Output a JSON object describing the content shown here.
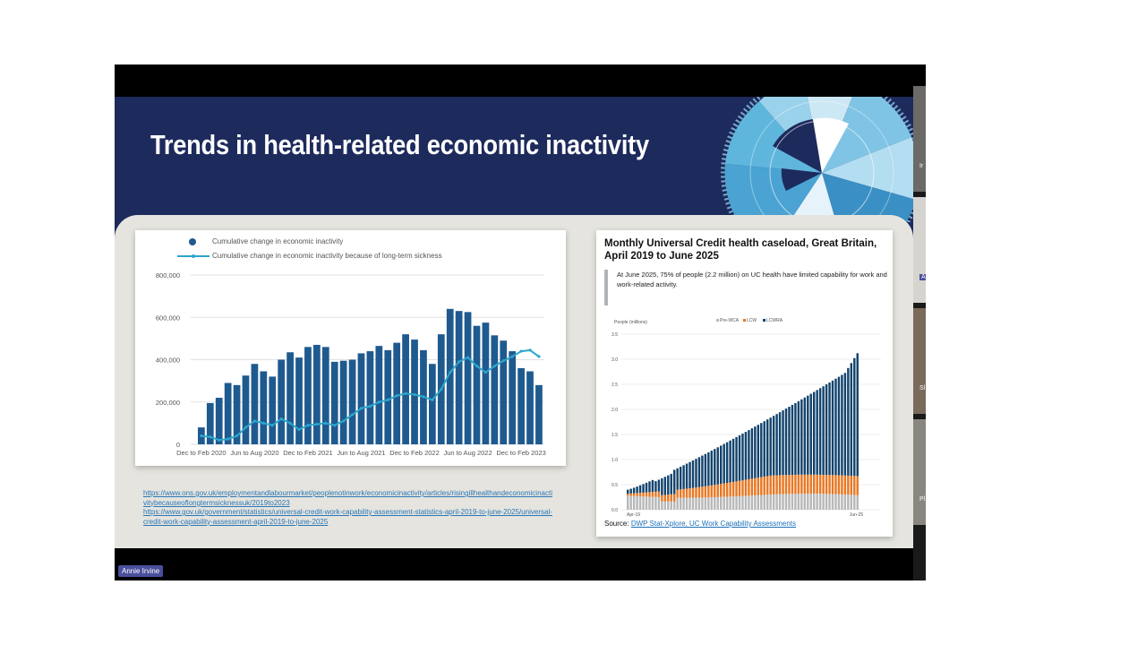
{
  "slide": {
    "title": "Trends in health-related economic inactivity"
  },
  "left_chart": {
    "legend": [
      "Cumulative change in economic inactivity",
      "Cumulative change in economic inactivity because of long-term sickness"
    ],
    "links": [
      "https://www.ons.gov.uk/employmentandlabourmarket/peoplenotinwork/economicinactivity/articles/risingillhealthandeconomicinactivitybecauseoflongtermsicknessuk/2019to2023",
      "https://www.gov.uk/government/statistics/universal-credit-work-capability-assessment-statistics-april-2019-to-june-2025/universal-credit-work-capability-assessment-april-2019-to-june-2025"
    ]
  },
  "right_chart": {
    "title": "Monthly Universal Credit health caseload, Great Britain, April 2019 to June 2025",
    "callout": "At June 2025, 75% of people (2.2 million) on UC health have limited capability for work and work-related activity.",
    "source_label": "Source:",
    "source_link": "DWP Stat-Xplore, UC Work Capability Assessments"
  },
  "participants": {
    "presenter_name": "Annie Irvine",
    "tile_labels": [
      "Ir",
      "A",
      "Sl",
      "Pl"
    ]
  },
  "colors": {
    "slide_bg": "#1d2a5c",
    "bar_blue": "#1f5a8f",
    "line_cyan": "#2ba6cc",
    "lcw_orange": "#e87722",
    "prewca_grey": "#b8b8b8",
    "lcwra_navy": "#12436d"
  },
  "chart_data": [
    {
      "type": "bar",
      "title": "",
      "xlabel": "",
      "ylabel": "",
      "ylim": [
        0,
        800000
      ],
      "yticks": [
        "0",
        "200,000",
        "400,000",
        "600,000",
        "800,000"
      ],
      "xtick_labels": [
        "Dec to Feb 2020",
        "Jun to Aug 2020",
        "Dec to Feb 2021",
        "Jun to Aug 2021",
        "Dec to Feb 2022",
        "Jun to Aug 2022",
        "Dec to Feb 2023"
      ],
      "series": [
        {
          "name": "Cumulative change in economic inactivity",
          "kind": "bar",
          "values": [
            80000,
            195000,
            220000,
            290000,
            280000,
            325000,
            380000,
            345000,
            320000,
            400000,
            435000,
            410000,
            460000,
            470000,
            460000,
            390000,
            395000,
            400000,
            430000,
            440000,
            465000,
            445000,
            480000,
            520000,
            495000,
            445000,
            380000,
            520000,
            640000,
            630000,
            625000,
            560000,
            575000,
            515000,
            490000,
            440000,
            360000,
            345000,
            280000
          ]
        },
        {
          "name": "Cumulative change in economic inactivity because of long-term sickness",
          "kind": "line",
          "values": [
            40000,
            35000,
            20000,
            25000,
            40000,
            80000,
            110000,
            100000,
            90000,
            120000,
            100000,
            70000,
            90000,
            95000,
            100000,
            90000,
            110000,
            140000,
            170000,
            180000,
            200000,
            210000,
            230000,
            240000,
            235000,
            225000,
            210000,
            260000,
            340000,
            390000,
            410000,
            370000,
            340000,
            370000,
            395000,
            415000,
            440000,
            445000,
            415000
          ]
        }
      ]
    },
    {
      "type": "bar",
      "title": "Monthly Universal Credit health caseload, Great Britain, April 2019 to June 2025",
      "ylabel": "People (millions)",
      "ylim": [
        0,
        3.5
      ],
      "yticks": [
        "0.0",
        "0.5",
        "1.0",
        "1.5",
        "2.0",
        "2.5",
        "3.0",
        "3.5"
      ],
      "xtick_labels": [
        "Apr-19",
        "Jun-25"
      ],
      "stacked": true,
      "legend_position": "top",
      "series_names": [
        "Pre-WCA",
        "LCW",
        "LCWRA"
      ],
      "note": "75 monthly stacked bars; Pre-WCA ~0.25-0.3m, LCW grows from ~0.05m to ~0.4m, total rises from ~0.4m to ~2.88m"
    }
  ]
}
